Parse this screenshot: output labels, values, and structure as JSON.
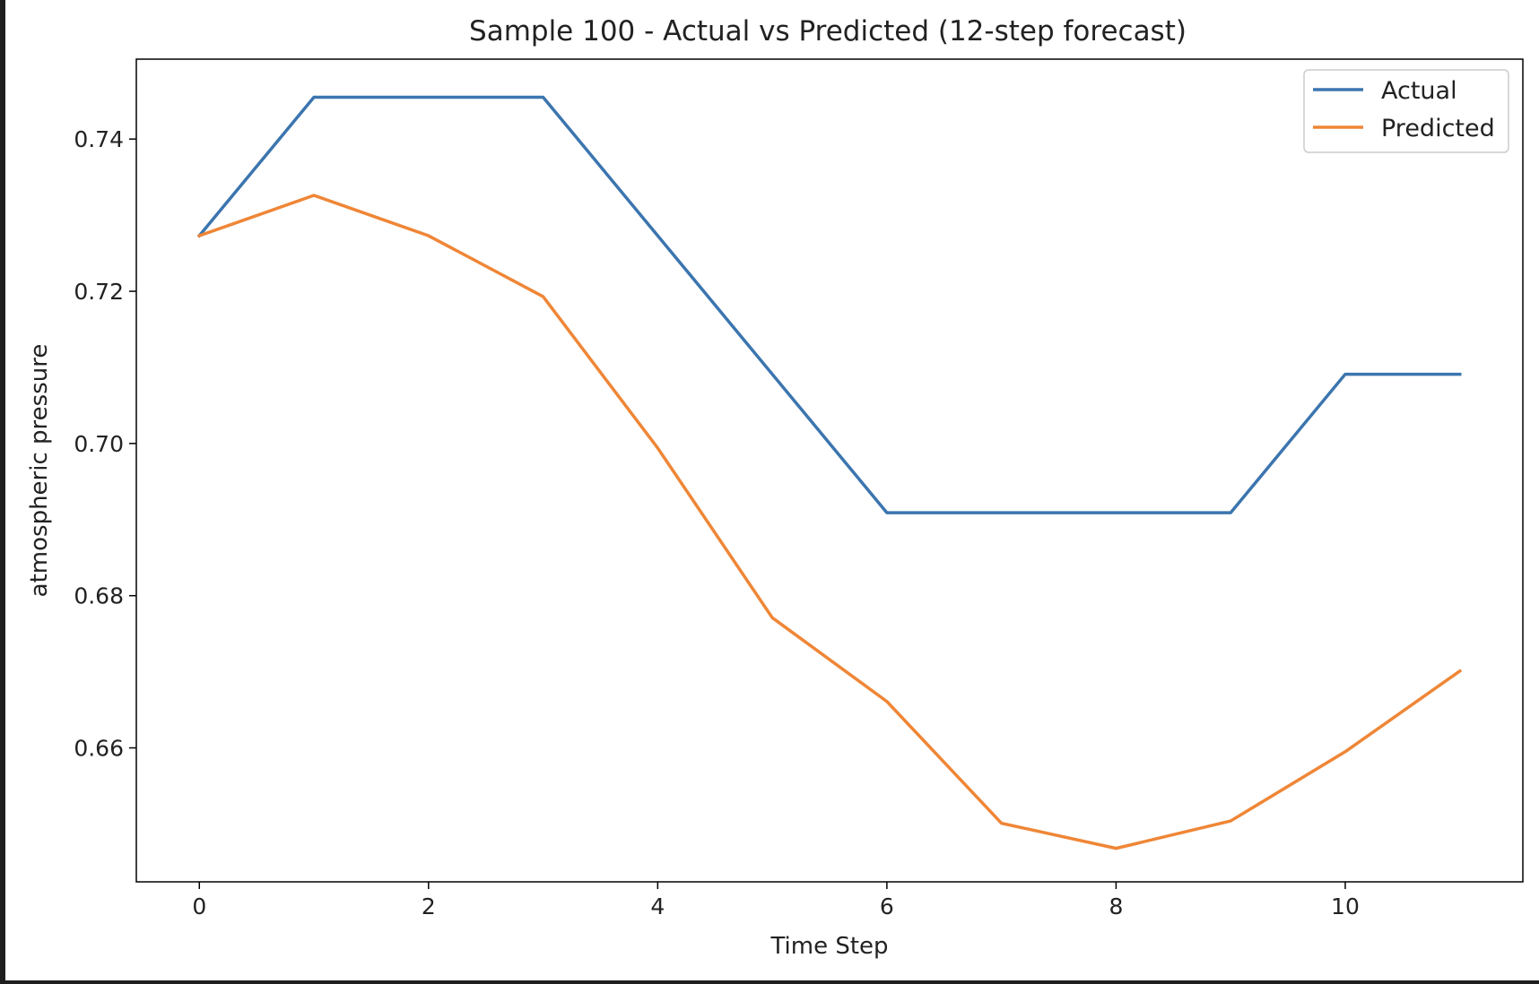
{
  "chart_data": {
    "type": "line",
    "title": "Sample 100 - Actual vs Predicted (12-step forecast)",
    "xlabel": "Time Step",
    "ylabel": "atmospheric pressure",
    "x": [
      0,
      1,
      2,
      3,
      4,
      5,
      6,
      7,
      8,
      9,
      10,
      11
    ],
    "xlim": [
      -0.55,
      11.55
    ],
    "ylim": [
      0.6424,
      0.7505
    ],
    "x_ticks": [
      0,
      2,
      4,
      6,
      8,
      10
    ],
    "x_tick_labels": [
      "0",
      "2",
      "4",
      "6",
      "8",
      "10"
    ],
    "y_ticks": [
      0.66,
      0.68,
      0.7,
      0.72,
      0.74
    ],
    "y_tick_labels": [
      "0.66",
      "0.68",
      "0.70",
      "0.72",
      "0.74"
    ],
    "grid": false,
    "legend_position": "top-right",
    "series": [
      {
        "name": "Actual",
        "color": "#3b75af",
        "values": [
          0.7273,
          0.7455,
          0.7455,
          0.7455,
          0.7273,
          0.7091,
          0.6909,
          0.6909,
          0.6909,
          0.6909,
          0.7091,
          0.7091
        ]
      },
      {
        "name": "Predicted",
        "color": "#ef8636",
        "values": [
          0.7273,
          0.7326,
          0.7273,
          0.7193,
          0.6994,
          0.6771,
          0.6661,
          0.6501,
          0.6468,
          0.6504,
          0.6595,
          0.6701
        ]
      }
    ]
  }
}
